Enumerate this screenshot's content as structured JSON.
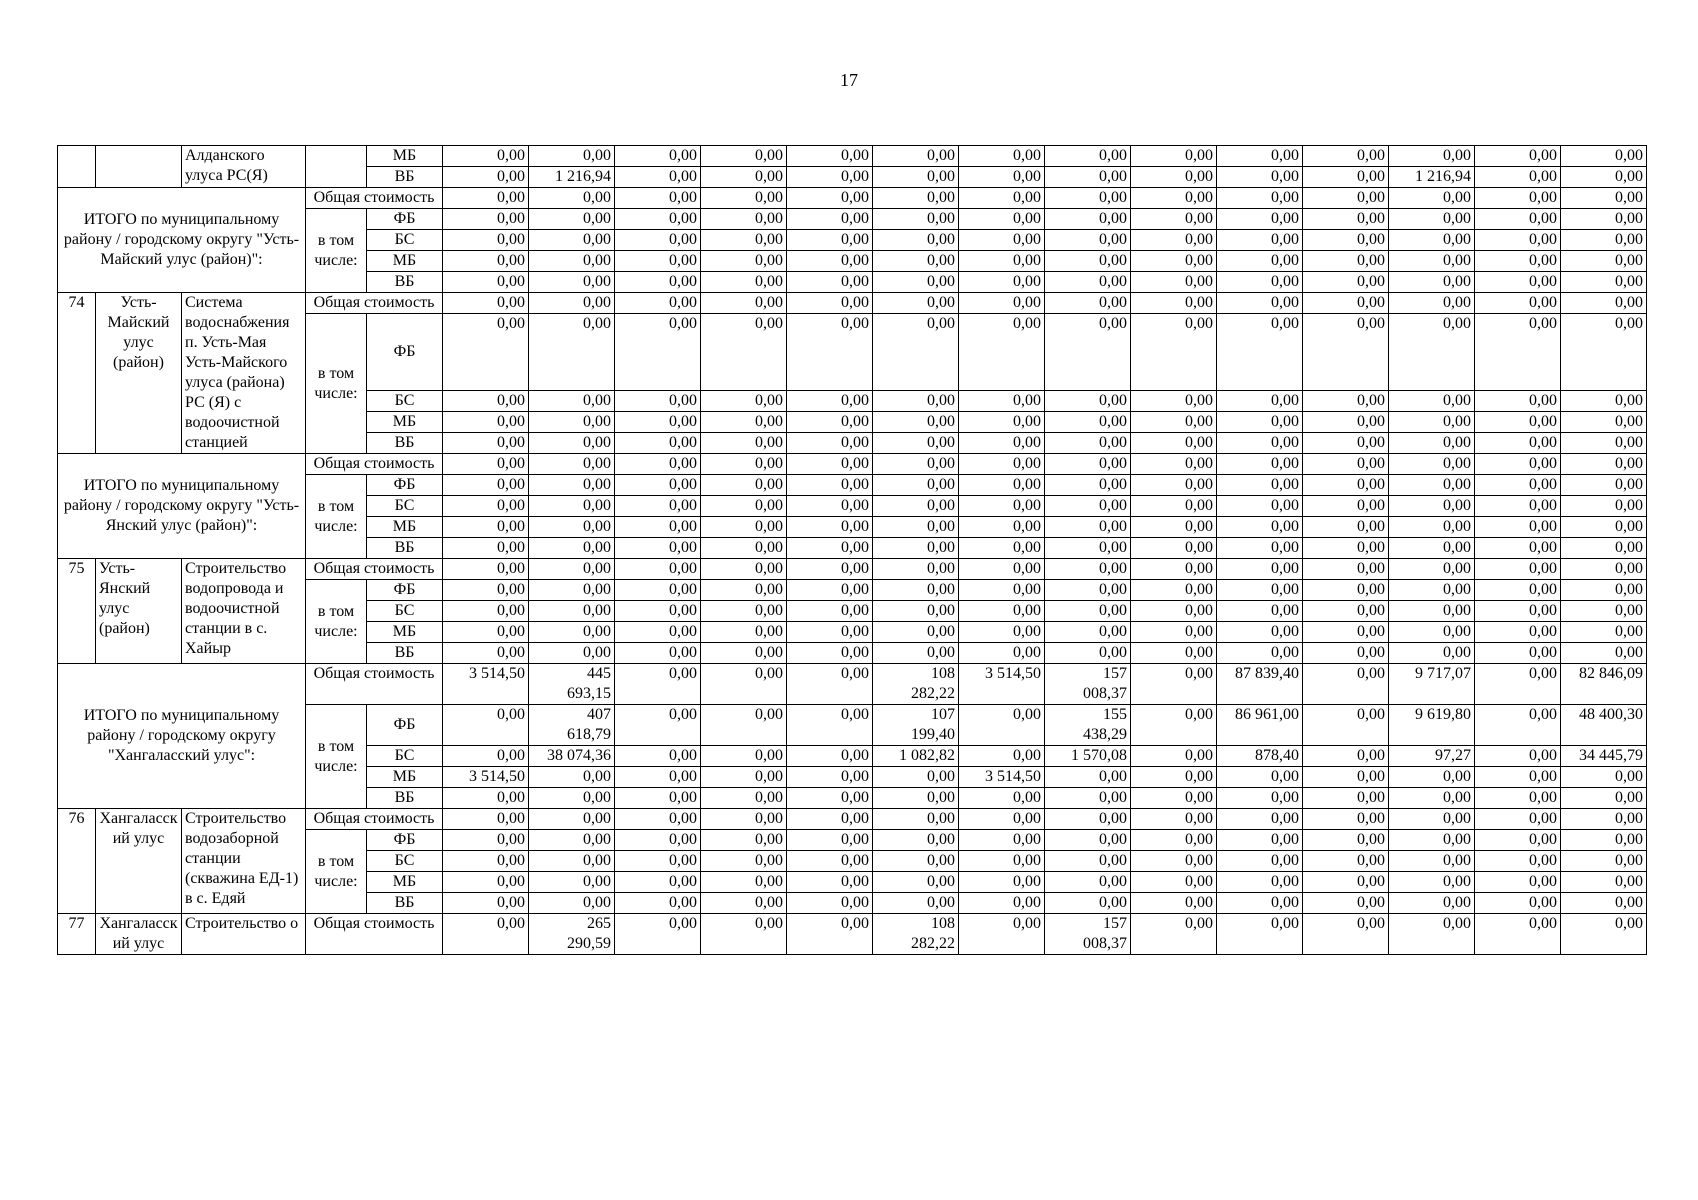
{
  "page_number": "17",
  "labels": {
    "total_cost": "Общая стоимость",
    "including": "в том числе:"
  },
  "sections": [
    {
      "type": "continuation",
      "num": "",
      "district": "",
      "object": "Алданского улуса РС(Я)",
      "rows": [
        {
          "fund": "МБ",
          "values": [
            "0,00",
            "0,00",
            "0,00",
            "0,00",
            "0,00",
            "0,00",
            "0,00",
            "0,00",
            "0,00",
            "0,00",
            "0,00",
            "0,00",
            "0,00",
            "0,00"
          ]
        },
        {
          "fund": "ВБ",
          "values": [
            "0,00",
            "1 216,94",
            "0,00",
            "0,00",
            "0,00",
            "0,00",
            "0,00",
            "0,00",
            "0,00",
            "0,00",
            "0,00",
            "1 216,94",
            "0,00",
            "0,00"
          ]
        }
      ]
    },
    {
      "type": "total",
      "label": "ИТОГО  по муниципальному району / городскому округу \"Усть-Майский улус (район)\":",
      "rows": [
        {
          "fund": "Общая стоимость",
          "values": [
            "0,00",
            "0,00",
            "0,00",
            "0,00",
            "0,00",
            "0,00",
            "0,00",
            "0,00",
            "0,00",
            "0,00",
            "0,00",
            "0,00",
            "0,00",
            "0,00"
          ]
        },
        {
          "fund": "ФБ",
          "values": [
            "0,00",
            "0,00",
            "0,00",
            "0,00",
            "0,00",
            "0,00",
            "0,00",
            "0,00",
            "0,00",
            "0,00",
            "0,00",
            "0,00",
            "0,00",
            "0,00"
          ]
        },
        {
          "fund": "БС",
          "values": [
            "0,00",
            "0,00",
            "0,00",
            "0,00",
            "0,00",
            "0,00",
            "0,00",
            "0,00",
            "0,00",
            "0,00",
            "0,00",
            "0,00",
            "0,00",
            "0,00"
          ]
        },
        {
          "fund": "МБ",
          "values": [
            "0,00",
            "0,00",
            "0,00",
            "0,00",
            "0,00",
            "0,00",
            "0,00",
            "0,00",
            "0,00",
            "0,00",
            "0,00",
            "0,00",
            "0,00",
            "0,00"
          ]
        },
        {
          "fund": "ВБ",
          "values": [
            "0,00",
            "0,00",
            "0,00",
            "0,00",
            "0,00",
            "0,00",
            "0,00",
            "0,00",
            "0,00",
            "0,00",
            "0,00",
            "0,00",
            "0,00",
            "0,00"
          ]
        }
      ]
    },
    {
      "type": "item",
      "num": "74",
      "district": "Усть-Майский улус (район)",
      "object": "Система водоснабжения п. Усть-Мая Усть-Майского улуса (района) РС (Я) с водоочистной станцией",
      "rows": [
        {
          "fund": "Общая стоимость",
          "values": [
            "0,00",
            "0,00",
            "0,00",
            "0,00",
            "0,00",
            "0,00",
            "0,00",
            "0,00",
            "0,00",
            "0,00",
            "0,00",
            "0,00",
            "0,00",
            "0,00"
          ]
        },
        {
          "fund": "ФБ",
          "values": [
            "0,00",
            "0,00",
            "0,00",
            "0,00",
            "0,00",
            "0,00",
            "0,00",
            "0,00",
            "0,00",
            "0,00",
            "0,00",
            "0,00",
            "0,00",
            "0,00"
          ]
        },
        {
          "fund": "БС",
          "values": [
            "0,00",
            "0,00",
            "0,00",
            "0,00",
            "0,00",
            "0,00",
            "0,00",
            "0,00",
            "0,00",
            "0,00",
            "0,00",
            "0,00",
            "0,00",
            "0,00"
          ]
        },
        {
          "fund": "МБ",
          "values": [
            "0,00",
            "0,00",
            "0,00",
            "0,00",
            "0,00",
            "0,00",
            "0,00",
            "0,00",
            "0,00",
            "0,00",
            "0,00",
            "0,00",
            "0,00",
            "0,00"
          ]
        },
        {
          "fund": "ВБ",
          "values": [
            "0,00",
            "0,00",
            "0,00",
            "0,00",
            "0,00",
            "0,00",
            "0,00",
            "0,00",
            "0,00",
            "0,00",
            "0,00",
            "0,00",
            "0,00",
            "0,00"
          ]
        }
      ]
    },
    {
      "type": "total",
      "label": "ИТОГО  по муниципальному району / городскому округу \"Усть-Янский улус (район)\":",
      "rows": [
        {
          "fund": "Общая стоимость",
          "values": [
            "0,00",
            "0,00",
            "0,00",
            "0,00",
            "0,00",
            "0,00",
            "0,00",
            "0,00",
            "0,00",
            "0,00",
            "0,00",
            "0,00",
            "0,00",
            "0,00"
          ]
        },
        {
          "fund": "ФБ",
          "values": [
            "0,00",
            "0,00",
            "0,00",
            "0,00",
            "0,00",
            "0,00",
            "0,00",
            "0,00",
            "0,00",
            "0,00",
            "0,00",
            "0,00",
            "0,00",
            "0,00"
          ]
        },
        {
          "fund": "БС",
          "values": [
            "0,00",
            "0,00",
            "0,00",
            "0,00",
            "0,00",
            "0,00",
            "0,00",
            "0,00",
            "0,00",
            "0,00",
            "0,00",
            "0,00",
            "0,00",
            "0,00"
          ]
        },
        {
          "fund": "МБ",
          "values": [
            "0,00",
            "0,00",
            "0,00",
            "0,00",
            "0,00",
            "0,00",
            "0,00",
            "0,00",
            "0,00",
            "0,00",
            "0,00",
            "0,00",
            "0,00",
            "0,00"
          ]
        },
        {
          "fund": "ВБ",
          "values": [
            "0,00",
            "0,00",
            "0,00",
            "0,00",
            "0,00",
            "0,00",
            "0,00",
            "0,00",
            "0,00",
            "0,00",
            "0,00",
            "0,00",
            "0,00",
            "0,00"
          ]
        }
      ]
    },
    {
      "type": "item",
      "num": "75",
      "district": "Усть-Янский улус (район)",
      "object": "Строительство водопровода и водоочистной станции в с. Хайыр",
      "rows": [
        {
          "fund": "Общая стоимость",
          "values": [
            "0,00",
            "0,00",
            "0,00",
            "0,00",
            "0,00",
            "0,00",
            "0,00",
            "0,00",
            "0,00",
            "0,00",
            "0,00",
            "0,00",
            "0,00",
            "0,00"
          ]
        },
        {
          "fund": "ФБ",
          "values": [
            "0,00",
            "0,00",
            "0,00",
            "0,00",
            "0,00",
            "0,00",
            "0,00",
            "0,00",
            "0,00",
            "0,00",
            "0,00",
            "0,00",
            "0,00",
            "0,00"
          ]
        },
        {
          "fund": "БС",
          "values": [
            "0,00",
            "0,00",
            "0,00",
            "0,00",
            "0,00",
            "0,00",
            "0,00",
            "0,00",
            "0,00",
            "0,00",
            "0,00",
            "0,00",
            "0,00",
            "0,00"
          ]
        },
        {
          "fund": "МБ",
          "values": [
            "0,00",
            "0,00",
            "0,00",
            "0,00",
            "0,00",
            "0,00",
            "0,00",
            "0,00",
            "0,00",
            "0,00",
            "0,00",
            "0,00",
            "0,00",
            "0,00"
          ]
        },
        {
          "fund": "ВБ",
          "values": [
            "0,00",
            "0,00",
            "0,00",
            "0,00",
            "0,00",
            "0,00",
            "0,00",
            "0,00",
            "0,00",
            "0,00",
            "0,00",
            "0,00",
            "0,00",
            "0,00"
          ]
        }
      ]
    },
    {
      "type": "total",
      "label": "ИТОГО  по муниципальному району / городскому округу \"Хангаласский улус\":",
      "rows": [
        {
          "fund": "Общая стоимость",
          "values": [
            "3 514,50",
            "445 693,15",
            "0,00",
            "0,00",
            "0,00",
            "108 282,22",
            "3 514,50",
            "157 008,37",
            "0,00",
            "87 839,40",
            "0,00",
            "9 717,07",
            "0,00",
            "82 846,09"
          ]
        },
        {
          "fund": "ФБ",
          "values": [
            "0,00",
            "407 618,79",
            "0,00",
            "0,00",
            "0,00",
            "107 199,40",
            "0,00",
            "155 438,29",
            "0,00",
            "86 961,00",
            "0,00",
            "9 619,80",
            "0,00",
            "48 400,30"
          ]
        },
        {
          "fund": "БС",
          "values": [
            "0,00",
            "38 074,36",
            "0,00",
            "0,00",
            "0,00",
            "1 082,82",
            "0,00",
            "1 570,08",
            "0,00",
            "878,40",
            "0,00",
            "97,27",
            "0,00",
            "34 445,79"
          ]
        },
        {
          "fund": "МБ",
          "values": [
            "3 514,50",
            "0,00",
            "0,00",
            "0,00",
            "0,00",
            "0,00",
            "3 514,50",
            "0,00",
            "0,00",
            "0,00",
            "0,00",
            "0,00",
            "0,00",
            "0,00"
          ]
        },
        {
          "fund": "ВБ",
          "values": [
            "0,00",
            "0,00",
            "0,00",
            "0,00",
            "0,00",
            "0,00",
            "0,00",
            "0,00",
            "0,00",
            "0,00",
            "0,00",
            "0,00",
            "0,00",
            "0,00"
          ]
        }
      ]
    },
    {
      "type": "item",
      "num": "76",
      "district": "Хангаласский улус",
      "object": "Строительство водозаборной станции (скважина ЕД-1) в с. Едяй",
      "rows": [
        {
          "fund": "Общая стоимость",
          "values": [
            "0,00",
            "0,00",
            "0,00",
            "0,00",
            "0,00",
            "0,00",
            "0,00",
            "0,00",
            "0,00",
            "0,00",
            "0,00",
            "0,00",
            "0,00",
            "0,00"
          ]
        },
        {
          "fund": "ФБ",
          "values": [
            "0,00",
            "0,00",
            "0,00",
            "0,00",
            "0,00",
            "0,00",
            "0,00",
            "0,00",
            "0,00",
            "0,00",
            "0,00",
            "0,00",
            "0,00",
            "0,00"
          ]
        },
        {
          "fund": "БС",
          "values": [
            "0,00",
            "0,00",
            "0,00",
            "0,00",
            "0,00",
            "0,00",
            "0,00",
            "0,00",
            "0,00",
            "0,00",
            "0,00",
            "0,00",
            "0,00",
            "0,00"
          ]
        },
        {
          "fund": "МБ",
          "values": [
            "0,00",
            "0,00",
            "0,00",
            "0,00",
            "0,00",
            "0,00",
            "0,00",
            "0,00",
            "0,00",
            "0,00",
            "0,00",
            "0,00",
            "0,00",
            "0,00"
          ]
        },
        {
          "fund": "ВБ",
          "values": [
            "0,00",
            "0,00",
            "0,00",
            "0,00",
            "0,00",
            "0,00",
            "0,00",
            "0,00",
            "0,00",
            "0,00",
            "0,00",
            "0,00",
            "0,00",
            "0,00"
          ]
        }
      ]
    },
    {
      "type": "item_partial",
      "num": "77",
      "district": "Хангаласский улус",
      "object": "Строительство о",
      "rows": [
        {
          "fund": "Общая стоимость",
          "values": [
            "0,00",
            "265 290,59",
            "0,00",
            "0,00",
            "0,00",
            "108 282,22",
            "0,00",
            "157 008,37",
            "0,00",
            "0,00",
            "0,00",
            "0,00",
            "0,00",
            "0,00"
          ]
        }
      ]
    }
  ]
}
